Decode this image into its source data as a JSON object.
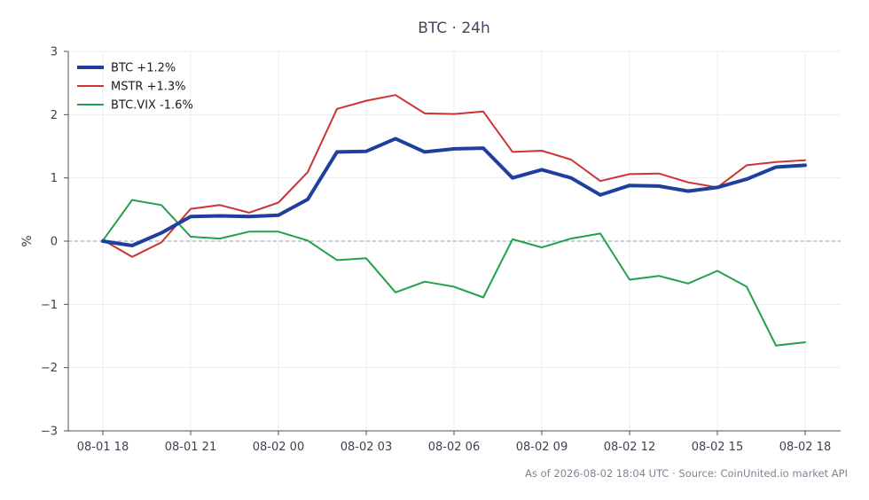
{
  "chart_data": {
    "type": "line",
    "title": "BTC · 24h",
    "ylabel": "%",
    "xlabel": "",
    "ylim": [
      -3,
      3
    ],
    "yticks": [
      {
        "value": -3,
        "label": "−3"
      },
      {
        "value": -2,
        "label": "−2"
      },
      {
        "value": -1,
        "label": "−1"
      },
      {
        "value": 0,
        "label": "0"
      },
      {
        "value": 1,
        "label": "1"
      },
      {
        "value": 2,
        "label": "2"
      },
      {
        "value": 3,
        "label": "3"
      }
    ],
    "xticks": [
      {
        "index": 0,
        "label": "08-01 18"
      },
      {
        "index": 3,
        "label": "08-01 21"
      },
      {
        "index": 6,
        "label": "08-02 00"
      },
      {
        "index": 9,
        "label": "08-02 03"
      },
      {
        "index": 12,
        "label": "08-02 06"
      },
      {
        "index": 15,
        "label": "08-02 09"
      },
      {
        "index": 18,
        "label": "08-02 12"
      },
      {
        "index": 21,
        "label": "08-02 15"
      },
      {
        "index": 24,
        "label": "08-02 18"
      }
    ],
    "x": [
      "08-01 18:00",
      "08-01 19:00",
      "08-01 20:00",
      "08-01 21:00",
      "08-01 22:00",
      "08-01 23:00",
      "08-02 00:00",
      "08-02 01:00",
      "08-02 02:00",
      "08-02 03:00",
      "08-02 04:00",
      "08-02 05:00",
      "08-02 06:00",
      "08-02 07:00",
      "08-02 08:00",
      "08-02 09:00",
      "08-02 10:00",
      "08-02 11:00",
      "08-02 12:00",
      "08-02 13:00",
      "08-02 14:00",
      "08-02 15:00",
      "08-02 16:00",
      "08-02 17:00",
      "08-02 18:00"
    ],
    "series": [
      {
        "name": "BTC +1.2%",
        "color": "#1f3f9f",
        "width": 4,
        "values": [
          0.0,
          -0.07,
          0.13,
          0.39,
          0.4,
          0.39,
          0.41,
          0.66,
          1.41,
          1.42,
          1.62,
          1.41,
          1.46,
          1.47,
          1.0,
          1.13,
          1.0,
          0.73,
          0.88,
          0.87,
          0.79,
          0.85,
          0.98,
          1.17,
          1.2
        ]
      },
      {
        "name": "MSTR +1.3%",
        "color": "#cc3333",
        "width": 2,
        "values": [
          0.02,
          -0.25,
          -0.02,
          0.51,
          0.57,
          0.45,
          0.61,
          1.09,
          2.09,
          2.22,
          2.31,
          2.02,
          2.01,
          2.05,
          1.41,
          1.43,
          1.29,
          0.95,
          1.06,
          1.07,
          0.93,
          0.85,
          1.2,
          1.25,
          1.28
        ]
      },
      {
        "name": "BTC.VIX -1.6%",
        "color": "#22a04b",
        "width": 2,
        "values": [
          0.01,
          0.65,
          0.57,
          0.07,
          0.04,
          0.15,
          0.15,
          0.01,
          -0.3,
          -0.27,
          -0.81,
          -0.64,
          -0.72,
          -0.89,
          0.03,
          -0.1,
          0.04,
          0.12,
          -0.61,
          -0.55,
          -0.67,
          -0.47,
          -0.72,
          -1.65,
          -1.6
        ]
      }
    ],
    "reference_line": {
      "value": 0,
      "color": "#8c9bb8",
      "style": "dashed"
    },
    "grid": true,
    "legend_position": "top-left"
  },
  "footer": {
    "text": "As of 2026-08-02 18:04 UTC · Source: CoinUnited.io market API"
  },
  "colors": {
    "axis": "#4a5668",
    "grid": "#ebedf0"
  }
}
